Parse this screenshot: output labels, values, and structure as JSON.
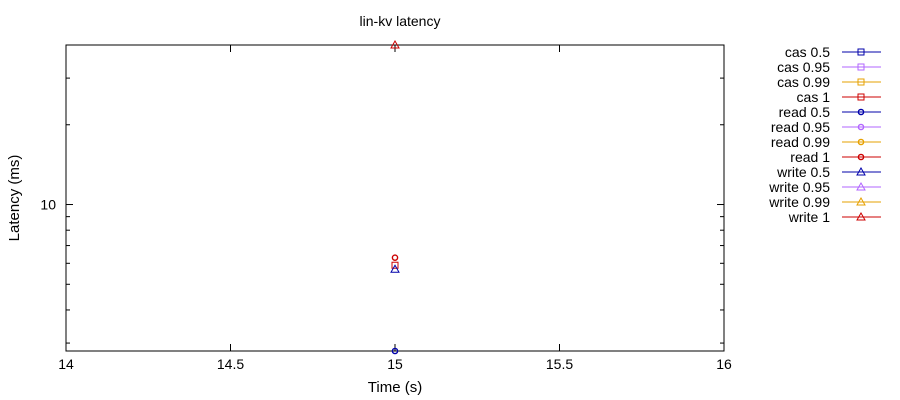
{
  "chart_data": {
    "type": "scatter",
    "title": "lin-kv latency",
    "xlabel": "Time (s)",
    "ylabel": "Latency (ms)",
    "x_scale": "linear",
    "y_scale": "log",
    "xlim": [
      14,
      16
    ],
    "ylim": [
      2.8,
      40
    ],
    "x_ticks": [
      14,
      14.5,
      15,
      15.5,
      16
    ],
    "x_tick_labels": [
      "14",
      "14.5",
      "15",
      "15.5",
      "16"
    ],
    "y_major_ticks": [
      10
    ],
    "y_tick_labels": [
      "10"
    ],
    "y_minor_ticks": [
      3,
      4,
      5,
      6,
      7,
      8,
      9,
      20,
      30,
      40
    ],
    "grid": false,
    "legend_position": "outside-right",
    "series": [
      {
        "name": "cas 0.5",
        "color": "#0000aa",
        "marker": "square",
        "points": []
      },
      {
        "name": "cas 0.95",
        "color": "#b266ff",
        "marker": "square",
        "points": []
      },
      {
        "name": "cas 0.99",
        "color": "#e6a000",
        "marker": "square",
        "points": []
      },
      {
        "name": "cas 1",
        "color": "#cc0000",
        "marker": "square",
        "points": [
          [
            15,
            5.9
          ]
        ]
      },
      {
        "name": "read 0.5",
        "color": "#0000aa",
        "marker": "circle",
        "points": [
          [
            15,
            2.8
          ]
        ]
      },
      {
        "name": "read 0.95",
        "color": "#b266ff",
        "marker": "circle",
        "points": []
      },
      {
        "name": "read 0.99",
        "color": "#e6a000",
        "marker": "circle",
        "points": []
      },
      {
        "name": "read 1",
        "color": "#cc0000",
        "marker": "circle",
        "points": [
          [
            15,
            6.3
          ]
        ]
      },
      {
        "name": "write 0.5",
        "color": "#0000aa",
        "marker": "triangle",
        "points": [
          [
            15,
            5.7
          ]
        ]
      },
      {
        "name": "write 0.95",
        "color": "#b266ff",
        "marker": "triangle",
        "points": []
      },
      {
        "name": "write 0.99",
        "color": "#e6a000",
        "marker": "triangle",
        "points": []
      },
      {
        "name": "write 1",
        "color": "#cc0000",
        "marker": "triangle",
        "points": [
          [
            15,
            40
          ]
        ]
      }
    ]
  }
}
